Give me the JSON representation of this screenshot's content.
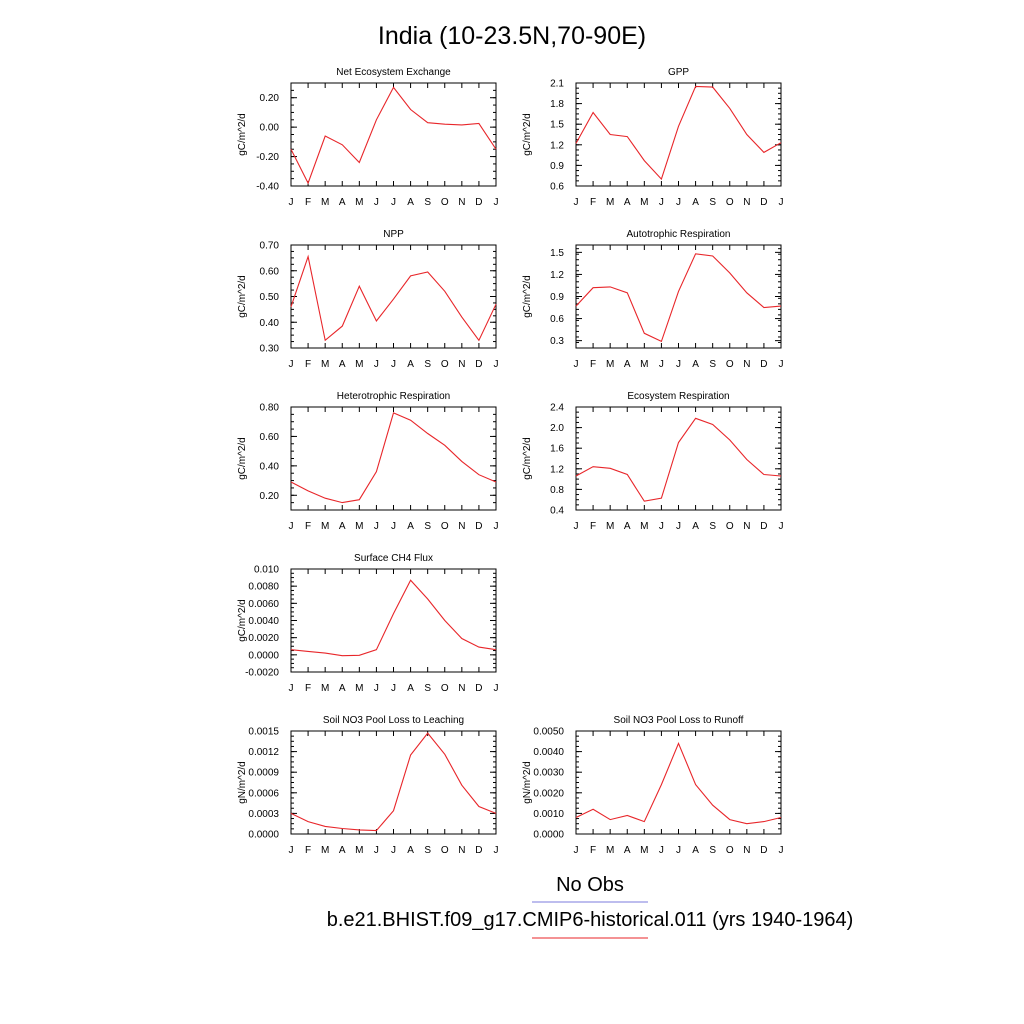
{
  "page_title": "India (10-23.5N,70-90E)",
  "x_tick_labels": [
    "J",
    "F",
    "M",
    "A",
    "M",
    "J",
    "J",
    "A",
    "S",
    "O",
    "N",
    "D",
    "J"
  ],
  "legend": {
    "no_obs_label": "No Obs",
    "no_obs_color": "#7b7bdc",
    "case_label": "b.e21.BHIST.f09_g17.CMIP6-historical.011 (yrs 1940-1964)",
    "case_color": "#e8262a"
  },
  "line_color": "#e8262a",
  "chart_data": [
    {
      "type": "line",
      "title": "Net Ecosystem Exchange",
      "ylabel": "gC/m^2/d",
      "ylim": [
        -0.4,
        0.3
      ],
      "yticks": [
        -0.4,
        -0.2,
        0.0,
        0.2
      ],
      "ytick_labels": [
        "-0.40",
        "-0.20",
        "0.00",
        "0.20"
      ],
      "x": [
        "J",
        "F",
        "M",
        "A",
        "M",
        "J",
        "J",
        "A",
        "S",
        "O",
        "N",
        "D",
        "J"
      ],
      "values": [
        -0.15,
        -0.38,
        -0.06,
        -0.12,
        -0.24,
        0.05,
        0.27,
        0.12,
        0.03,
        0.02,
        0.015,
        0.025,
        -0.15
      ]
    },
    {
      "type": "line",
      "title": "GPP",
      "ylabel": "gC/m^2/d",
      "ylim": [
        0.6,
        2.1
      ],
      "yticks": [
        0.6,
        0.9,
        1.2,
        1.5,
        1.8,
        2.1
      ],
      "ytick_labels": [
        "0.6",
        "0.9",
        "1.2",
        "1.5",
        "1.8",
        "2.1"
      ],
      "x": [
        "J",
        "F",
        "M",
        "A",
        "M",
        "J",
        "J",
        "A",
        "S",
        "O",
        "N",
        "D",
        "J"
      ],
      "values": [
        1.22,
        1.67,
        1.35,
        1.32,
        0.97,
        0.7,
        1.47,
        2.05,
        2.04,
        1.73,
        1.35,
        1.09,
        1.23
      ]
    },
    {
      "type": "line",
      "title": "NPP",
      "ylabel": "gC/m^2/d",
      "ylim": [
        0.3,
        0.7
      ],
      "yticks": [
        0.3,
        0.4,
        0.5,
        0.6,
        0.7
      ],
      "ytick_labels": [
        "0.30",
        "0.40",
        "0.50",
        "0.60",
        "0.70"
      ],
      "x": [
        "J",
        "F",
        "M",
        "A",
        "M",
        "J",
        "J",
        "A",
        "S",
        "O",
        "N",
        "D",
        "J"
      ],
      "values": [
        0.46,
        0.655,
        0.33,
        0.385,
        0.54,
        0.405,
        0.49,
        0.58,
        0.595,
        0.52,
        0.42,
        0.33,
        0.47
      ]
    },
    {
      "type": "line",
      "title": "Autotrophic Respiration",
      "ylabel": "gC/m^2/d",
      "ylim": [
        0.2,
        1.6
      ],
      "yticks": [
        0.3,
        0.6,
        0.9,
        1.2,
        1.5
      ],
      "ytick_labels": [
        "0.3",
        "0.6",
        "0.9",
        "1.2",
        "1.5"
      ],
      "x": [
        "J",
        "F",
        "M",
        "A",
        "M",
        "J",
        "J",
        "A",
        "S",
        "O",
        "N",
        "D",
        "J"
      ],
      "values": [
        0.77,
        1.02,
        1.03,
        0.95,
        0.4,
        0.29,
        0.97,
        1.48,
        1.45,
        1.22,
        0.95,
        0.75,
        0.77
      ]
    },
    {
      "type": "line",
      "title": "Heterotrophic Respiration",
      "ylabel": "gC/m^2/d",
      "ylim": [
        0.1,
        0.8
      ],
      "yticks": [
        0.2,
        0.4,
        0.6,
        0.8
      ],
      "ytick_labels": [
        "0.20",
        "0.40",
        "0.60",
        "0.80"
      ],
      "x": [
        "J",
        "F",
        "M",
        "A",
        "M",
        "J",
        "J",
        "A",
        "S",
        "O",
        "N",
        "D",
        "J"
      ],
      "values": [
        0.29,
        0.23,
        0.18,
        0.15,
        0.17,
        0.36,
        0.76,
        0.71,
        0.62,
        0.54,
        0.43,
        0.34,
        0.29
      ]
    },
    {
      "type": "line",
      "title": "Ecosystem Respiration",
      "ylabel": "gC/m^2/d",
      "ylim": [
        0.4,
        2.4
      ],
      "yticks": [
        0.4,
        0.8,
        1.2,
        1.6,
        2.0,
        2.4
      ],
      "ytick_labels": [
        "0.4",
        "0.8",
        "1.2",
        "1.6",
        "2.0",
        "2.4"
      ],
      "x": [
        "J",
        "F",
        "M",
        "A",
        "M",
        "J",
        "J",
        "A",
        "S",
        "O",
        "N",
        "D",
        "J"
      ],
      "values": [
        1.06,
        1.24,
        1.21,
        1.09,
        0.57,
        0.63,
        1.71,
        2.18,
        2.06,
        1.76,
        1.38,
        1.09,
        1.06
      ]
    },
    {
      "type": "line",
      "title": "Surface CH4 Flux",
      "ylabel": "gC/m^2/d",
      "ylim": [
        -0.002,
        0.01
      ],
      "yticks": [
        -0.002,
        0.0,
        0.002,
        0.004,
        0.006,
        0.008,
        0.01
      ],
      "ytick_labels": [
        "-0.0020",
        "0.0000",
        "0.0020",
        "0.0040",
        "0.0060",
        "0.0080",
        "0.010"
      ],
      "x": [
        "J",
        "F",
        "M",
        "A",
        "M",
        "J",
        "J",
        "A",
        "S",
        "O",
        "N",
        "D",
        "J"
      ],
      "values": [
        0.0006,
        0.0004,
        0.0002,
        -0.0001,
        -5e-05,
        0.0006,
        0.0048,
        0.0087,
        0.0065,
        0.004,
        0.0019,
        0.0009,
        0.0006
      ]
    },
    {
      "type": "line",
      "title": "Soil NO3 Pool Loss to Leaching",
      "ylabel": "gN/m^2/d",
      "ylim": [
        0.0,
        0.0015
      ],
      "yticks": [
        0.0,
        0.0003,
        0.0006,
        0.0009,
        0.0012,
        0.0015
      ],
      "ytick_labels": [
        "0.0000",
        "0.0003",
        "0.0006",
        "0.0009",
        "0.0012",
        "0.0015"
      ],
      "x": [
        "J",
        "F",
        "M",
        "A",
        "M",
        "J",
        "J",
        "A",
        "S",
        "O",
        "N",
        "D",
        "J"
      ],
      "values": [
        0.0003,
        0.00018,
        0.00011,
        8e-05,
        6e-05,
        5e-05,
        0.00034,
        0.00115,
        0.00147,
        0.00116,
        0.00071,
        0.0004,
        0.0003
      ]
    },
    {
      "type": "line",
      "title": "Soil NO3 Pool Loss to Runoff",
      "ylabel": "gN/m^2/d",
      "ylim": [
        0.0,
        0.005
      ],
      "yticks": [
        0.0,
        0.001,
        0.002,
        0.003,
        0.004,
        0.005
      ],
      "ytick_labels": [
        "0.0000",
        "0.0010",
        "0.0020",
        "0.0030",
        "0.0040",
        "0.0050"
      ],
      "x": [
        "J",
        "F",
        "M",
        "A",
        "M",
        "J",
        "J",
        "A",
        "S",
        "O",
        "N",
        "D",
        "J"
      ],
      "values": [
        0.0008,
        0.0012,
        0.0007,
        0.0009,
        0.0006,
        0.0024,
        0.0044,
        0.0024,
        0.0014,
        0.0007,
        0.0005,
        0.0006,
        0.0008
      ]
    }
  ]
}
